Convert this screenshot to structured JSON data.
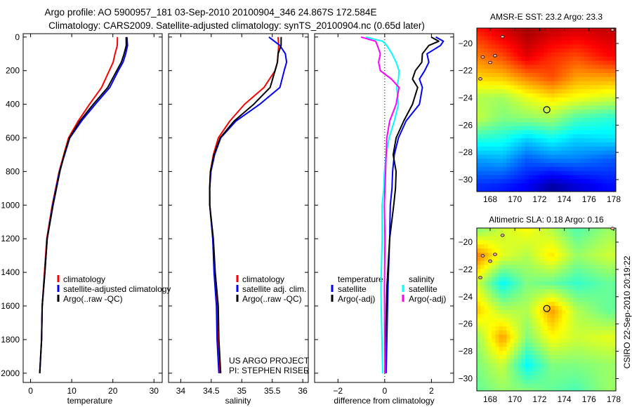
{
  "header": {
    "line1": "Argo profile: AO 5900957_181 03-Sep-2010 20100904_346 24.867S 172.584E",
    "line2": "Climatology: CARS2009. Satellite-adjusted climatology: synTS_20100904.nc (0.65d later)"
  },
  "credits": {
    "project": "US ARGO PROJECT",
    "pi": "PI: STEPHEN RISER",
    "stamp": "CSIRO 22-Sep-2010 20:19:22"
  },
  "colors": {
    "red": "#ff0000",
    "blue": "#0000ff",
    "black": "#000000",
    "cyan": "#00ffff",
    "magenta": "#ff00ff"
  },
  "chart_data": [
    {
      "id": "temp",
      "type": "line",
      "xlabel": "temperature",
      "ylabel": "",
      "xlim": [
        -1.8,
        32
      ],
      "ylim": [
        2055,
        -20
      ],
      "xticks": [
        0,
        10,
        20,
        30
      ],
      "yticks": [
        0,
        200,
        400,
        600,
        800,
        1000,
        1200,
        1400,
        1600,
        1800,
        2000
      ],
      "legend": [
        "climatology",
        "satellite-adjusted climatology",
        "Argo(..raw -QC)"
      ],
      "legend_position": "lower-right",
      "depth": [
        0,
        50,
        100,
        150,
        200,
        300,
        400,
        500,
        600,
        700,
        800,
        1000,
        1200,
        1400,
        1600,
        1800,
        2000
      ],
      "series": [
        {
          "name": "climatology",
          "color": "#ff0000",
          "values": [
            21.2,
            21.0,
            20.6,
            20.0,
            19.2,
            17.2,
            14.4,
            11.5,
            9.3,
            8.0,
            7.0,
            5.2,
            4.0,
            3.3,
            2.9,
            2.6,
            2.3
          ]
        },
        {
          "name": "satellite-adjusted climatology",
          "color": "#0000ff",
          "values": [
            23.5,
            23.5,
            23.2,
            22.4,
            21.4,
            19.2,
            15.8,
            12.3,
            9.6,
            8.2,
            7.1,
            5.3,
            4.1,
            3.4,
            2.9,
            2.6,
            2.3
          ]
        },
        {
          "name": "Argo(..raw -QC)",
          "color": "#000000",
          "values": [
            23.3,
            23.2,
            22.8,
            22.0,
            21.0,
            18.7,
            15.3,
            11.9,
            9.5,
            8.1,
            7.2,
            5.4,
            4.1,
            3.4,
            2.9,
            2.6,
            2.3
          ]
        }
      ]
    },
    {
      "id": "sal",
      "type": "line",
      "xlabel": "salinity",
      "xlim": [
        33.8,
        36.09
      ],
      "ylim": [
        2055,
        -20
      ],
      "xticks": [
        34,
        34.5,
        35,
        35.5,
        36
      ],
      "legend": [
        "climatology",
        "satellite adj. clim.",
        "Argo(..raw -QC)"
      ],
      "legend_position": "lower-right",
      "depth": [
        0,
        50,
        100,
        150,
        200,
        300,
        400,
        500,
        600,
        700,
        800,
        900,
        1000,
        1200,
        1400,
        1600,
        1800,
        2000
      ],
      "series": [
        {
          "name": "climatology",
          "color": "#ff0000",
          "values": [
            35.6,
            35.6,
            35.6,
            35.58,
            35.55,
            35.36,
            35.05,
            34.8,
            34.62,
            34.53,
            34.49,
            34.47,
            34.48,
            34.52,
            34.56,
            34.59,
            34.62,
            34.64
          ]
        },
        {
          "name": "satellite adj. clim.",
          "color": "#0000ff",
          "values": [
            35.45,
            35.62,
            35.72,
            35.73,
            35.7,
            35.62,
            35.3,
            34.9,
            34.66,
            34.55,
            34.5,
            34.47,
            34.48,
            34.52,
            34.55,
            34.58,
            34.6,
            34.62
          ]
        },
        {
          "name": "Argo(..raw -QC)",
          "color": "#000000",
          "values": [
            35.65,
            35.64,
            35.6,
            35.58,
            35.55,
            35.46,
            35.2,
            34.87,
            34.65,
            34.54,
            34.49,
            34.47,
            34.48,
            34.53,
            34.57,
            34.61,
            34.63,
            34.65
          ]
        }
      ]
    },
    {
      "id": "diff",
      "type": "line",
      "xlabel": "difference from climatology",
      "xlim": [
        -3.0,
        2.95
      ],
      "ylim": [
        2055,
        -20
      ],
      "xticks": [
        -2,
        0,
        2
      ],
      "legend_headers": [
        "temperature",
        "salinity"
      ],
      "legend": [
        "satellite",
        "Argo(-adj)",
        "satellite",
        "Argo(-adj)"
      ],
      "legend_position": "lower-center",
      "depth": [
        0,
        25,
        50,
        100,
        150,
        200,
        250,
        300,
        400,
        500,
        600,
        700,
        800,
        900,
        1000,
        1200,
        1500,
        2000
      ],
      "series": [
        {
          "name": "temperature satellite",
          "color": "#0000ff",
          "values": [
            2.2,
            2.5,
            2.4,
            1.8,
            1.9,
            1.7,
            1.5,
            1.6,
            1.5,
            0.9,
            0.6,
            0.4,
            0.35,
            0.3,
            0.25,
            0.2,
            0.15,
            0.05
          ]
        },
        {
          "name": "temperature Argo(-adj)",
          "color": "#000000",
          "values": [
            2.0,
            2.3,
            1.9,
            1.6,
            1.6,
            1.3,
            1.2,
            1.4,
            1.2,
            0.8,
            0.5,
            0.35,
            0.5,
            0.45,
            0.4,
            0.2,
            0.1,
            0.0
          ]
        },
        {
          "name": "salinity satellite",
          "color": "#00ffff",
          "values": [
            -0.8,
            -0.1,
            0.1,
            0.3,
            0.5,
            0.6,
            0.6,
            0.5,
            0.6,
            0.4,
            0.2,
            0.05,
            0.0,
            -0.05,
            -0.1,
            -0.12,
            -0.15,
            -0.1
          ]
        },
        {
          "name": "salinity Argo(-adj)",
          "color": "#ff00ff",
          "values": [
            -1.0,
            -0.4,
            -0.3,
            -0.2,
            -0.25,
            -0.2,
            0.3,
            0.6,
            0.5,
            0.2,
            0.1,
            0.05,
            0.05,
            0.0,
            0.0,
            0.0,
            0.0,
            0.0
          ]
        }
      ]
    },
    {
      "id": "sst",
      "type": "heatmap",
      "title": "AMSR-E SST: 23.2 Argo: 23.3",
      "xlim": [
        166.92,
        178.17
      ],
      "ylim": [
        -30.88,
        -18.87
      ],
      "xticks": [
        168,
        170,
        172,
        174,
        176,
        178
      ],
      "yticks": [
        -20,
        -22,
        -24,
        -26,
        -28,
        -30
      ],
      "clim": [
        19.5,
        25.5
      ],
      "colormap": "jet",
      "lons": [
        167,
        169,
        171,
        173,
        175,
        177.5
      ],
      "lats": [
        -19,
        -21,
        -22.5,
        -24,
        -25.5,
        -27,
        -28.5,
        -30.5
      ],
      "values": [
        [
          24.6,
          25.0,
          25.3,
          25.1,
          25.0,
          25.1
        ],
        [
          24.0,
          24.3,
          24.9,
          24.5,
          24.3,
          24.7
        ],
        [
          23.5,
          23.6,
          24.0,
          24.3,
          23.8,
          23.8
        ],
        [
          22.8,
          22.7,
          23.1,
          23.4,
          23.2,
          23.0
        ],
        [
          22.9,
          22.5,
          22.6,
          22.7,
          22.2,
          22.0
        ],
        [
          22.0,
          21.9,
          21.5,
          21.8,
          21.5,
          21.6
        ],
        [
          21.2,
          21.3,
          20.8,
          21.0,
          21.0,
          20.8
        ],
        [
          20.5,
          20.4,
          20.2,
          19.7,
          20.0,
          20.3
        ]
      ],
      "marker": {
        "lon": 172.584,
        "lat": -24.867
      }
    },
    {
      "id": "sla",
      "type": "heatmap",
      "title": "Altimetric SLA: 0.18 Argo: 0.16",
      "xlim": [
        166.92,
        178.17
      ],
      "ylim": [
        -30.9,
        -18.97
      ],
      "xticks": [
        168,
        170,
        172,
        174,
        176,
        178
      ],
      "yticks": [
        -20,
        -22,
        -24,
        -26,
        -28,
        -30
      ],
      "clim": [
        -0.3,
        0.5
      ],
      "colormap": "jet",
      "lons": [
        167,
        169,
        171,
        173,
        175,
        177.5
      ],
      "lats": [
        -19,
        -21,
        -23,
        -25,
        -27,
        -29,
        -30.8
      ],
      "values": [
        [
          0.1,
          0.16,
          0.2,
          0.14,
          0.06,
          0.12
        ],
        [
          0.3,
          0.18,
          0.14,
          0.22,
          0.12,
          0.16
        ],
        [
          0.16,
          0.0,
          0.1,
          0.08,
          0.04,
          0.08
        ],
        [
          0.24,
          0.14,
          0.14,
          0.28,
          0.14,
          0.08
        ],
        [
          0.12,
          0.28,
          0.1,
          0.2,
          0.16,
          0.18
        ],
        [
          0.1,
          0.16,
          0.0,
          0.1,
          0.1,
          0.12
        ],
        [
          0.08,
          0.12,
          0.1,
          0.08,
          0.06,
          0.12
        ]
      ],
      "marker": {
        "lon": 172.584,
        "lat": -24.867
      }
    }
  ]
}
